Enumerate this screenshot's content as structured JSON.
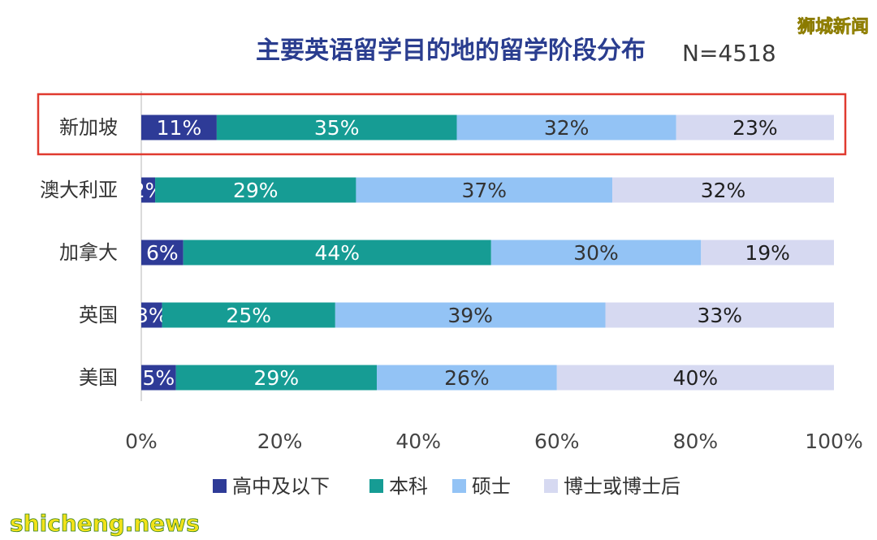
{
  "watermark_top": "狮城新闻",
  "watermark_bottom": "shicheng.news",
  "chart_data": {
    "type": "bar",
    "orientation": "horizontal",
    "stacked": true,
    "title": "主要英语留学目的地的留学阶段分布",
    "sample_size": "N=4518",
    "categories": [
      "新加坡",
      "澳大利亚",
      "加拿大",
      "英国",
      "美国"
    ],
    "series": [
      {
        "name": "高中及以下",
        "values": [
          11,
          2,
          6,
          3,
          5
        ],
        "color": "#2e3b97",
        "label_color": "#ffffff"
      },
      {
        "name": "本科",
        "values": [
          35,
          29,
          44,
          25,
          29
        ],
        "color": "#169c94",
        "label_color": "#ffffff"
      },
      {
        "name": "硕士",
        "values": [
          32,
          37,
          30,
          39,
          26
        ],
        "color": "#93c3f5",
        "label_color": "#333333"
      },
      {
        "name": "博士或博士后",
        "values": [
          23,
          32,
          19,
          33,
          40
        ],
        "color": "#d6d9f1",
        "label_color": "#1f1f1f"
      }
    ],
    "data_labels": [
      [
        "11%",
        "2%",
        "6%",
        "3%",
        "5%"
      ],
      [
        "35%",
        "29%",
        "44%",
        "25%",
        "29%"
      ],
      [
        "32%",
        "37%",
        "30%",
        "39%",
        "26%"
      ],
      [
        "23%",
        "32%",
        "19%",
        "33%",
        "40%"
      ]
    ],
    "xlim": [
      0,
      100
    ],
    "x_ticks": [
      "0%",
      "20%",
      "40%",
      "60%",
      "80%",
      "100%"
    ],
    "highlighted_category": "新加坡",
    "highlight_color": "#e03a2f",
    "grid": false,
    "legend_position": "bottom"
  }
}
